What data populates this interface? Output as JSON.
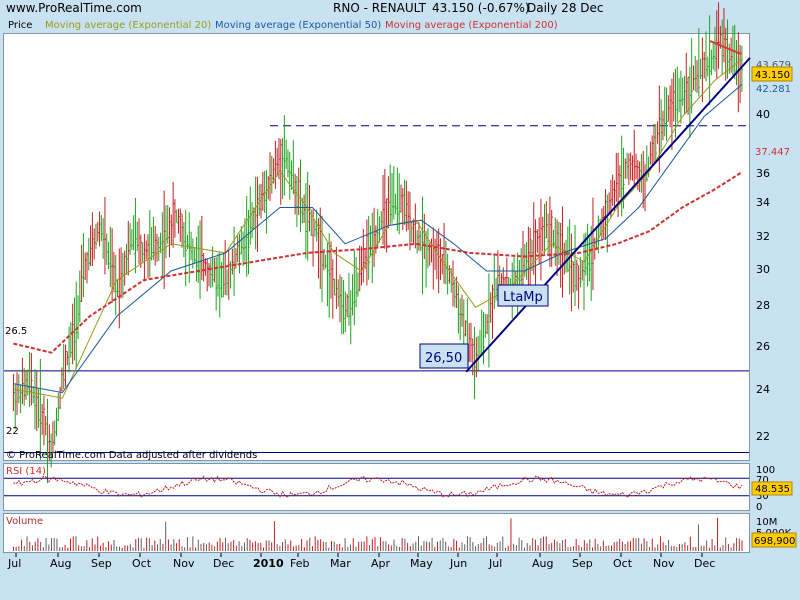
{
  "header": {
    "site": "www.ProRealTime.com",
    "title": "RNO - RENAULT",
    "quote": "43.150 (-0.67%)",
    "period": "Daily  28 Dec"
  },
  "legend": {
    "price": "Price",
    "ema20": "Moving average (Exponential 20)",
    "ema50": "Moving average (Exponential 50)",
    "ema200": "Moving average (Exponential 200)",
    "colors": {
      "ema20": "#9a9a1a",
      "ema50": "#1a5aa0",
      "ema200": "#d03030"
    }
  },
  "footer_note": "© ProRealTime.com  Data adjusted after dividends",
  "price_panel": {
    "y_ticks": [
      "22",
      "24",
      "26",
      "28",
      "30",
      "32",
      "34",
      "36",
      "40"
    ],
    "badges": {
      "last": "43.150",
      "ema50": "42.281",
      "ema200": "37.447",
      "ema20_partial": "43.679"
    },
    "left_labels": {
      "support": "26.5",
      "low": "22"
    },
    "annotations": {
      "trendline": "LtaMp",
      "support": "26,50"
    }
  },
  "rsi_panel": {
    "label": "RSI (14)",
    "y_ticks": [
      "100",
      "70",
      "30",
      "0"
    ],
    "last": "48.535"
  },
  "volume_panel": {
    "label": "Volume",
    "y_ticks": [
      "10M",
      "5,000K"
    ],
    "last": "698,900"
  },
  "x_axis": {
    "months": [
      "Jul",
      "Aug",
      "Sep",
      "Oct",
      "Nov",
      "Dec",
      "2010",
      "Feb",
      "Mar",
      "Apr",
      "May",
      "Jun",
      "Jul",
      "Aug",
      "Sep",
      "Oct",
      "Nov",
      "Dec"
    ]
  },
  "chart_data": {
    "type": "line",
    "title": "RNO - RENAULT",
    "series": [
      {
        "name": "Price",
        "values": [
          [
            1,
            25.0
          ],
          [
            4,
            25.8
          ],
          [
            7,
            23.5
          ],
          [
            8,
            22.0
          ],
          [
            9,
            24.0
          ],
          [
            10,
            26.2
          ],
          [
            12,
            28.5
          ],
          [
            14,
            32.0
          ],
          [
            17,
            34.5
          ],
          [
            20,
            31.0
          ],
          [
            23,
            34.0
          ],
          [
            25,
            33.0
          ],
          [
            28,
            33.5
          ],
          [
            31,
            35.0
          ],
          [
            34,
            33.0
          ],
          [
            37,
            32.0
          ],
          [
            40,
            31.5
          ],
          [
            44,
            34.0
          ],
          [
            48,
            37.0
          ],
          [
            51,
            38.5
          ],
          [
            54,
            35.5
          ],
          [
            57,
            34.0
          ],
          [
            60,
            31.0
          ],
          [
            63,
            30.0
          ],
          [
            66,
            33.0
          ],
          [
            69,
            35.0
          ],
          [
            72,
            36.0
          ],
          [
            75,
            34.0
          ],
          [
            78,
            33.0
          ],
          [
            81,
            32.0
          ],
          [
            84,
            29.0
          ],
          [
            86,
            26.8
          ],
          [
            88,
            29.0
          ],
          [
            90,
            31.5
          ],
          [
            93,
            31.0
          ],
          [
            96,
            33.0
          ],
          [
            99,
            34.5
          ],
          [
            102,
            33.0
          ],
          [
            105,
            31.5
          ],
          [
            108,
            33.5
          ],
          [
            111,
            36.0
          ],
          [
            114,
            38.0
          ],
          [
            117,
            37.0
          ],
          [
            120,
            40.0
          ],
          [
            123,
            41.5
          ],
          [
            126,
            42.5
          ],
          [
            129,
            43.5
          ],
          [
            131,
            44.8
          ],
          [
            133,
            43.8
          ],
          [
            135,
            43.15
          ]
        ]
      },
      {
        "name": "Moving average (Exponential 20)",
        "values": [
          [
            1,
            25.5
          ],
          [
            10,
            25.0
          ],
          [
            20,
            31.5
          ],
          [
            30,
            33.5
          ],
          [
            40,
            33.0
          ],
          [
            50,
            37.5
          ],
          [
            55,
            35.5
          ],
          [
            60,
            33.0
          ],
          [
            65,
            32.0
          ],
          [
            70,
            34.5
          ],
          [
            75,
            34.8
          ],
          [
            80,
            32.5
          ],
          [
            86,
            30.0
          ],
          [
            92,
            31.0
          ],
          [
            100,
            33.5
          ],
          [
            106,
            32.5
          ],
          [
            112,
            35.5
          ],
          [
            118,
            37.5
          ],
          [
            124,
            40.5
          ],
          [
            130,
            42.5
          ],
          [
            135,
            43.68
          ]
        ]
      },
      {
        "name": "Moving average (Exponential 50)",
        "values": [
          [
            1,
            25.8
          ],
          [
            10,
            25.3
          ],
          [
            20,
            29.5
          ],
          [
            30,
            32.0
          ],
          [
            40,
            33.0
          ],
          [
            50,
            35.5
          ],
          [
            56,
            35.5
          ],
          [
            62,
            33.5
          ],
          [
            70,
            34.5
          ],
          [
            76,
            34.8
          ],
          [
            82,
            33.5
          ],
          [
            88,
            32.0
          ],
          [
            95,
            32.0
          ],
          [
            102,
            33.0
          ],
          [
            110,
            33.8
          ],
          [
            116,
            35.5
          ],
          [
            122,
            38.0
          ],
          [
            128,
            40.5
          ],
          [
            135,
            42.28
          ]
        ]
      },
      {
        "name": "Moving average (Exponential 200)",
        "values": [
          [
            1,
            28.0
          ],
          [
            8,
            27.5
          ],
          [
            15,
            29.5
          ],
          [
            25,
            31.5
          ],
          [
            35,
            32.0
          ],
          [
            45,
            32.5
          ],
          [
            55,
            33.0
          ],
          [
            65,
            33.2
          ],
          [
            75,
            33.5
          ],
          [
            85,
            33.0
          ],
          [
            95,
            32.8
          ],
          [
            105,
            33.0
          ],
          [
            112,
            33.5
          ],
          [
            118,
            34.2
          ],
          [
            124,
            35.5
          ],
          [
            130,
            36.5
          ],
          [
            135,
            37.45
          ]
        ]
      }
    ],
    "horizontal_lines": [
      {
        "label": "26.5",
        "value": 26.5
      },
      {
        "label": "22",
        "value": 22
      },
      {
        "label": "40",
        "value": 40
      }
    ],
    "trendline": {
      "label": "LtaMp",
      "from": [
        85,
        26.5
      ],
      "to": [
        135,
        43.3
      ]
    },
    "ylim": [
      21.7,
      45.0
    ]
  }
}
